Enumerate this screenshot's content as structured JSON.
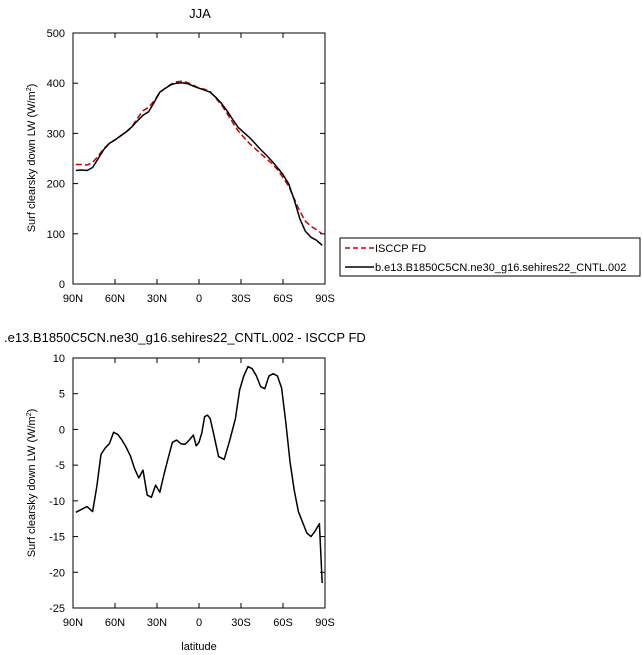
{
  "chart_data": [
    {
      "type": "line",
      "title": "JJA",
      "xlabel": "",
      "ylabel": "Surf clearsky down LW (W/m",
      "ylabel_sup": "2",
      "ylabel_end": ")",
      "xlim": [
        90,
        -90
      ],
      "ylim": [
        0,
        500
      ],
      "yticks": [
        0,
        100,
        200,
        300,
        400,
        500
      ],
      "xticks": [
        90,
        60,
        30,
        0,
        -30,
        -60,
        -90
      ],
      "xticklabels": [
        "90N",
        "60N",
        "30N",
        "0",
        "30S",
        "60S",
        "90S"
      ],
      "legend": [
        "ISCCP FD",
        "b.e13.B1850C5CN.ne30_g16.sehires22_CNTL.002"
      ],
      "legend_position": "right",
      "series": [
        {
          "name": "ISCCP FD",
          "color": "#cc0000",
          "dash": "dashed",
          "x": [
            88,
            84,
            80,
            76,
            72,
            68,
            64,
            60,
            56,
            52,
            48,
            44,
            40,
            36,
            32,
            28,
            24,
            20,
            16,
            12,
            8,
            4,
            0,
            -4,
            -8,
            -12,
            -16,
            -20,
            -24,
            -28,
            -32,
            -36,
            -40,
            -44,
            -48,
            -52,
            -56,
            -60,
            -64,
            -68,
            -72,
            -76,
            -80,
            -84,
            -88
          ],
          "y": [
            238,
            238,
            237,
            242,
            255,
            270,
            280,
            287,
            295,
            303,
            313,
            330,
            345,
            352,
            365,
            382,
            390,
            398,
            403,
            404,
            401,
            396,
            390,
            388,
            383,
            370,
            357,
            340,
            322,
            305,
            292,
            280,
            270,
            260,
            250,
            240,
            228,
            212,
            195,
            170,
            145,
            125,
            115,
            108,
            100
          ]
        },
        {
          "name": "b.e13.B1850C5CN.ne30_g16.sehires22_CNTL.002",
          "color": "#000000",
          "dash": "solid",
          "x": [
            88,
            84,
            80,
            76,
            72,
            68,
            64,
            60,
            56,
            52,
            48,
            44,
            40,
            36,
            32,
            28,
            24,
            20,
            16,
            12,
            8,
            4,
            0,
            -4,
            -8,
            -12,
            -16,
            -20,
            -24,
            -28,
            -32,
            -36,
            -40,
            -44,
            -48,
            -52,
            -56,
            -60,
            -64,
            -68,
            -72,
            -76,
            -80,
            -84,
            -88
          ],
          "y": [
            226,
            227,
            226,
            232,
            250,
            268,
            280,
            287,
            295,
            303,
            313,
            325,
            336,
            343,
            362,
            382,
            390,
            397,
            400,
            401,
            399,
            394,
            390,
            386,
            382,
            372,
            360,
            345,
            328,
            312,
            302,
            292,
            280,
            268,
            257,
            245,
            232,
            218,
            200,
            168,
            130,
            105,
            93,
            87,
            77
          ]
        }
      ]
    },
    {
      "type": "line",
      "title": ".e13.B1850C5CN.ne30_g16.sehires22_CNTL.002 - ISCCP FD",
      "xlabel": "latitude",
      "ylabel": "Surf clearsky down LW (W/m",
      "ylabel_sup": "2",
      "ylabel_end": ")",
      "xlim": [
        90,
        -90
      ],
      "ylim": [
        -25,
        10
      ],
      "yticks": [
        -25,
        -20,
        -15,
        -10,
        -5,
        0,
        5,
        10
      ],
      "xticks": [
        90,
        60,
        30,
        0,
        -30,
        -60,
        -90
      ],
      "xticklabels": [
        "90N",
        "60N",
        "30N",
        "0",
        "30S",
        "60S",
        "90S"
      ],
      "series": [
        {
          "color": "#000000",
          "dash": "solid",
          "x": [
            88,
            84,
            80,
            76,
            73,
            70,
            67,
            64,
            61,
            58,
            55,
            52,
            49,
            46,
            43,
            40,
            37,
            34,
            31,
            28,
            25,
            22,
            19,
            16,
            13,
            10,
            7,
            4,
            2,
            0,
            -2,
            -4,
            -6,
            -8,
            -10,
            -14,
            -18,
            -22,
            -26,
            -29,
            -32,
            -35,
            -38,
            -41,
            -44,
            -47,
            -50,
            -53,
            -56,
            -59,
            -62,
            -65,
            -68,
            -71,
            -74,
            -77,
            -80,
            -83,
            -86,
            -88
          ],
          "y": [
            -11.6,
            -11.2,
            -10.8,
            -11.5,
            -8.0,
            -3.5,
            -2.6,
            -2.0,
            -0.4,
            -0.7,
            -1.5,
            -2.5,
            -3.7,
            -5.5,
            -6.8,
            -5.7,
            -9.2,
            -9.5,
            -7.8,
            -8.8,
            -6.3,
            -4.0,
            -1.8,
            -1.5,
            -2.0,
            -2.1,
            -1.5,
            -0.8,
            -2.3,
            -1.8,
            -0.5,
            1.8,
            2.0,
            1.5,
            -0.2,
            -3.8,
            -4.2,
            -1.5,
            1.5,
            5.5,
            7.5,
            8.8,
            8.5,
            7.5,
            6.0,
            5.7,
            7.5,
            7.8,
            7.5,
            5.8,
            1.0,
            -4.5,
            -8.5,
            -11.5,
            -13.0,
            -14.5,
            -15.0,
            -14.2,
            -13.2,
            -21.5
          ]
        }
      ]
    }
  ]
}
